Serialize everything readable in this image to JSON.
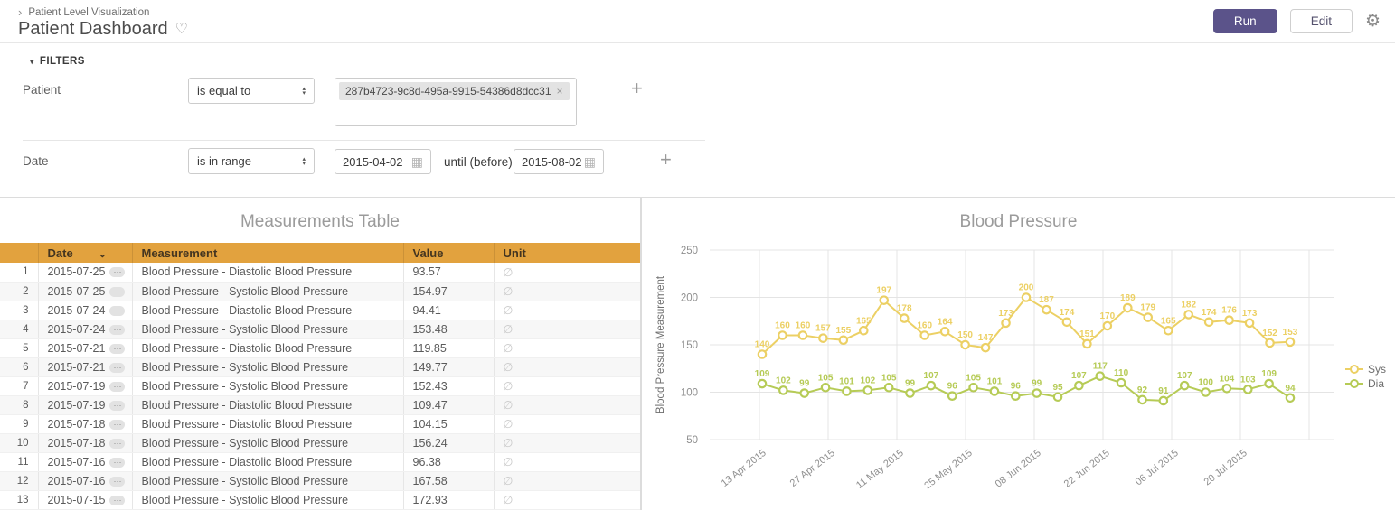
{
  "header": {
    "breadcrumb": "Patient Level Visualization",
    "title": "Patient Dashboard",
    "run_label": "Run",
    "edit_label": "Edit"
  },
  "icons": {
    "breadcrumb_chevron": "›",
    "favorite_heart": "♡",
    "settings_gear": "⚙",
    "collapse_triangle": "▾",
    "select_updown": "▴▾",
    "sort_chevron": "⌄",
    "calendar": "▦",
    "add_plus": "+",
    "chip_close": "×",
    "row_ellipsis": "⋯"
  },
  "filters": {
    "section_label": "FILTERS",
    "patient": {
      "label": "Patient",
      "operator": "is equal to",
      "value": "287b4723-9c8d-495a-9915-54386d8dcc31"
    },
    "date": {
      "label": "Date",
      "operator": "is in range",
      "start": "2015-04-02",
      "until_label": "until (before)",
      "end": "2015-08-02"
    }
  },
  "table": {
    "title": "Measurements Table",
    "columns": {
      "date": "Date",
      "measurement": "Measurement",
      "value": "Value",
      "unit": "Unit"
    },
    "null_symbol": "∅",
    "rows": [
      {
        "n": 1,
        "date": "2015-07-25",
        "measurement": "Blood Pressure - Diastolic Blood Pressure",
        "value": "93.57"
      },
      {
        "n": 2,
        "date": "2015-07-25",
        "measurement": "Blood Pressure - Systolic Blood Pressure",
        "value": "154.97"
      },
      {
        "n": 3,
        "date": "2015-07-24",
        "measurement": "Blood Pressure - Diastolic Blood Pressure",
        "value": "94.41"
      },
      {
        "n": 4,
        "date": "2015-07-24",
        "measurement": "Blood Pressure - Systolic Blood Pressure",
        "value": "153.48"
      },
      {
        "n": 5,
        "date": "2015-07-21",
        "measurement": "Blood Pressure - Diastolic Blood Pressure",
        "value": "119.85"
      },
      {
        "n": 6,
        "date": "2015-07-21",
        "measurement": "Blood Pressure - Systolic Blood Pressure",
        "value": "149.77"
      },
      {
        "n": 7,
        "date": "2015-07-19",
        "measurement": "Blood Pressure - Systolic Blood Pressure",
        "value": "152.43"
      },
      {
        "n": 8,
        "date": "2015-07-19",
        "measurement": "Blood Pressure - Diastolic Blood Pressure",
        "value": "109.47"
      },
      {
        "n": 9,
        "date": "2015-07-18",
        "measurement": "Blood Pressure - Diastolic Blood Pressure",
        "value": "104.15"
      },
      {
        "n": 10,
        "date": "2015-07-18",
        "measurement": "Blood Pressure - Systolic Blood Pressure",
        "value": "156.24"
      },
      {
        "n": 11,
        "date": "2015-07-16",
        "measurement": "Blood Pressure - Diastolic Blood Pressure",
        "value": "96.38"
      },
      {
        "n": 12,
        "date": "2015-07-16",
        "measurement": "Blood Pressure - Systolic Blood Pressure",
        "value": "167.58"
      },
      {
        "n": 13,
        "date": "2015-07-15",
        "measurement": "Blood Pressure - Systolic Blood Pressure",
        "value": "172.93"
      }
    ]
  },
  "chart_data": {
    "type": "line",
    "title": "Blood Pressure",
    "ylabel": "Blood Pressure Measurement",
    "ylim": [
      50,
      250
    ],
    "yticks": [
      250,
      200,
      150,
      100,
      50
    ],
    "grid": true,
    "legend_position": "right",
    "xticklabels": [
      "13 Apr 2015",
      "27 Apr 2015",
      "11 May 2015",
      "25 May 2015",
      "08 Jun 2015",
      "22 Jun 2015",
      "06 Jul 2015",
      "20 Jul 2015"
    ],
    "series": [
      {
        "name": "Dia",
        "color": "#b6cb56",
        "values": [
          109,
          102,
          99,
          105,
          101,
          102,
          105,
          99,
          107,
          96,
          105,
          101,
          96,
          99,
          95,
          107,
          117,
          110,
          92,
          91,
          107,
          100,
          104,
          103,
          109,
          94
        ]
      },
      {
        "name": "Sys",
        "color": "#ecd064",
        "values": [
          140,
          160,
          160,
          157,
          155,
          165,
          197,
          178,
          160,
          164,
          150,
          147,
          173,
          200,
          187,
          174,
          151,
          170,
          189,
          179,
          165,
          182,
          174,
          176,
          173,
          152,
          153
        ]
      }
    ]
  }
}
